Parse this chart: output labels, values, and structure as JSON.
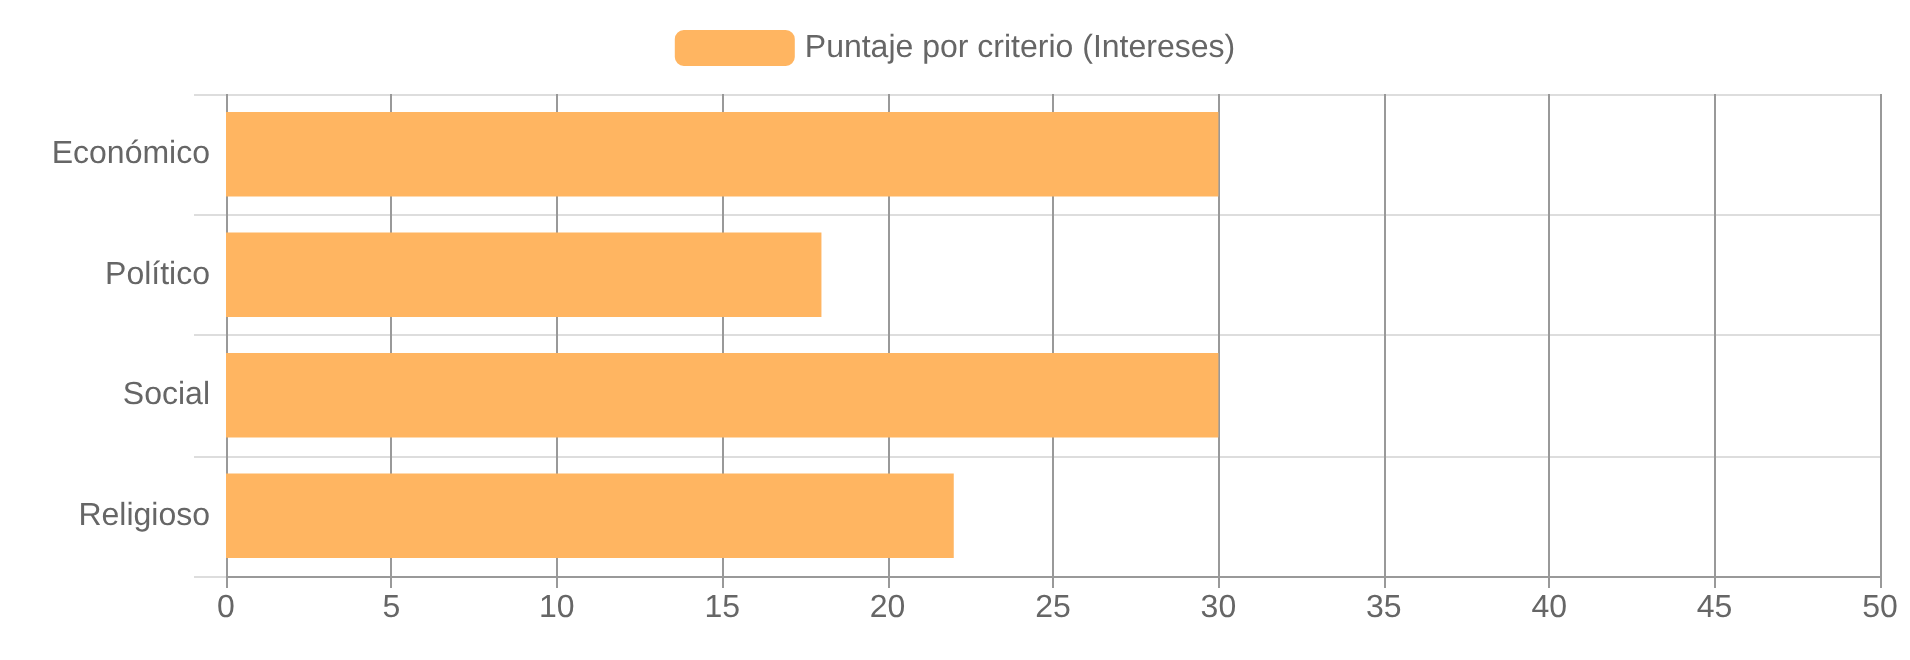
{
  "chart_data": {
    "type": "bar",
    "orientation": "horizontal",
    "categories": [
      "Económico",
      "Político",
      "Social",
      "Religioso"
    ],
    "series": [
      {
        "name": "Puntaje por criterio (Intereses)",
        "color": "#ffb561",
        "values": [
          30,
          18,
          30,
          22
        ]
      }
    ],
    "xlim": [
      0,
      50
    ],
    "xticks": [
      0,
      5,
      10,
      15,
      20,
      25,
      30,
      35,
      40,
      45,
      50
    ],
    "grid": true,
    "legend": "top"
  }
}
